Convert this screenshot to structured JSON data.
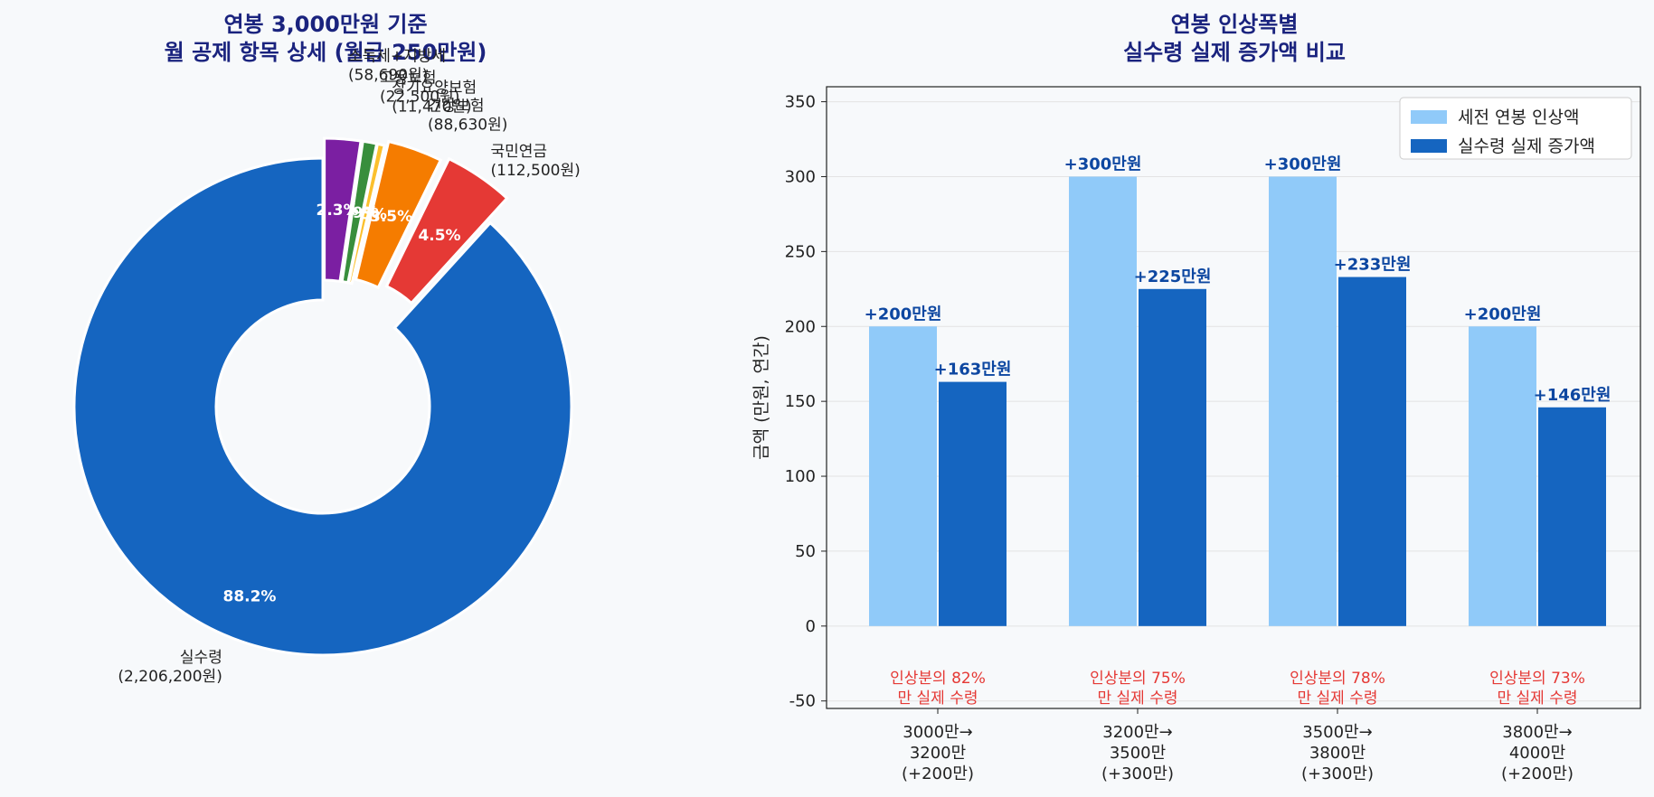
{
  "chart_data": [
    {
      "type": "pie",
      "title": [
        "연봉 3,000만원 기준",
        "월 공제 항목 상세 (월급 250만원)"
      ],
      "slices": [
        {
          "name": "실수령",
          "value": 2206200,
          "value_label": "(2,206,200원)",
          "pct_label": "88.2%",
          "color": "#1565c0"
        },
        {
          "name": "국민연금",
          "value": 112500,
          "value_label": "(112,500원)",
          "pct_label": "4.5%",
          "color": "#e53935"
        },
        {
          "name": "건강보험",
          "value": 88630,
          "value_label": "(88,630원)",
          "pct_label": "3.5%",
          "color": "#f57c00"
        },
        {
          "name": "장기요양보험",
          "value": 11470,
          "value_label": "(11,470원)",
          "pct_label": "0.5%",
          "color": "#fbc02d"
        },
        {
          "name": "고용보험",
          "value": 22500,
          "value_label": "(22,500원)",
          "pct_label": "0.9%",
          "color": "#388e3c"
        },
        {
          "name": "소득세+지방세",
          "value": 58690,
          "value_label": "(58,690원)",
          "pct_label": "2.3%",
          "color": "#7b1fa2"
        }
      ]
    },
    {
      "type": "bar",
      "title": [
        "연봉 인상폭별",
        "실수령 실제 증가액 비교"
      ],
      "ylabel": "금액 (만원, 연간)",
      "ylim": [
        -55,
        360
      ],
      "yticks": [
        -50,
        0,
        50,
        100,
        150,
        200,
        250,
        300,
        350
      ],
      "categories": [
        [
          "3000만→",
          "3200만",
          "(+200만)"
        ],
        [
          "3200만→",
          "3500만",
          "(+300만)"
        ],
        [
          "3500만→",
          "3800만",
          "(+300만)"
        ],
        [
          "3800만→",
          "4000만",
          "(+200만)"
        ]
      ],
      "series": [
        {
          "name": "세전 연봉 인상액",
          "color": "#90caf9",
          "values": [
            200,
            300,
            300,
            200
          ],
          "labels": [
            "+200만원",
            "+300만원",
            "+300만원",
            "+200만원"
          ]
        },
        {
          "name": "실수령 실제 증가액",
          "color": "#1565c0",
          "values": [
            163,
            225,
            233,
            146
          ],
          "labels": [
            "+163만원",
            "+225만원",
            "+233만원",
            "+146만원"
          ]
        }
      ],
      "notes": [
        [
          "인상분의 82%",
          "만 실제 수령"
        ],
        [
          "인상분의 75%",
          "만 실제 수령"
        ],
        [
          "인상분의 78%",
          "만 실제 수령"
        ],
        [
          "인상분의 73%",
          "만 실제 수령"
        ]
      ],
      "legend_position": "top-right",
      "grid": true
    }
  ]
}
